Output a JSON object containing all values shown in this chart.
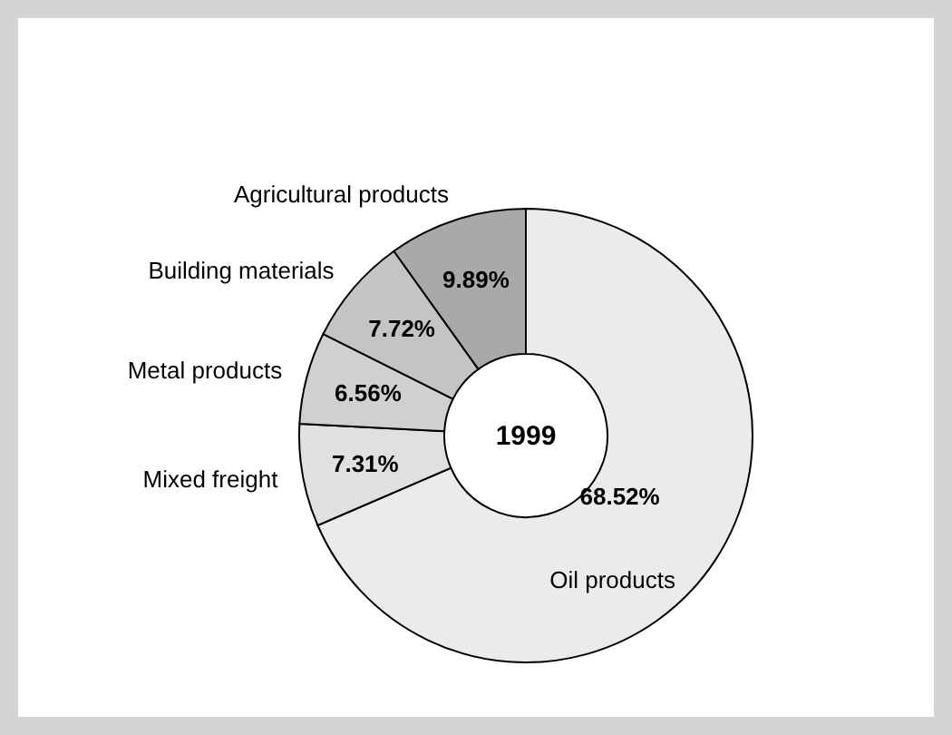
{
  "chart_data": {
    "type": "donut",
    "categories": [
      "Oil products",
      "Mixed  freight",
      "Metal products",
      "Building materials",
      "Agricultural products"
    ],
    "values": [
      68.52,
      7.31,
      6.56,
      7.72,
      9.89
    ],
    "value_labels": [
      "68.52%",
      "7.31%",
      "6.56%",
      "7.72%",
      "9.89%"
    ],
    "colors": [
      "#ebebeb",
      "#e0e0e0",
      "#d0d0d0",
      "#c4c4c4",
      "#a9a9a9"
    ],
    "annotations": [
      "1999"
    ]
  }
}
